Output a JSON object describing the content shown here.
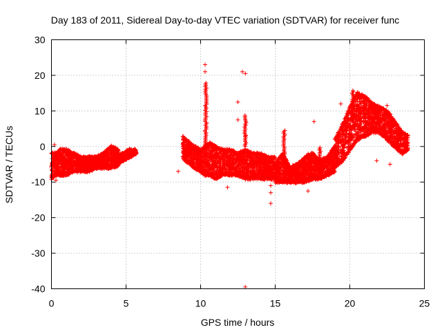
{
  "chart_data": {
    "type": "scatter",
    "title": "Day 183 of 2011, Sidereal Day-to-day VTEC variation (SDTVAR) for receiver func",
    "xlabel": "GPS time / hours",
    "ylabel": "SDTVAR / TECUs",
    "xlim": [
      0,
      25
    ],
    "ylim": [
      -40,
      30
    ],
    "x_ticks": [
      0,
      5,
      10,
      15,
      20,
      25
    ],
    "y_ticks": [
      -40,
      -30,
      -20,
      -10,
      0,
      10,
      20,
      30
    ],
    "grid": true,
    "marker": "+",
    "color": "#ff0000",
    "bands": [
      {
        "x": [
          0,
          0.3,
          0.6,
          1.0,
          1.5,
          2.0,
          2.5,
          3.0,
          3.5,
          4.0,
          4.5
        ],
        "lo": [
          -9,
          -8,
          -8,
          -8,
          -7,
          -7,
          -7,
          -6,
          -6,
          -6,
          -5
        ],
        "hi": [
          -2,
          -2,
          -1,
          -1,
          -2,
          -3,
          -3,
          -3,
          -2,
          0,
          -1
        ]
      },
      {
        "x": [
          4.2,
          4.8,
          5.2,
          5.7
        ],
        "lo": [
          -6,
          -4,
          -3,
          -2
        ],
        "hi": [
          -3,
          -2,
          -1,
          -1
        ]
      },
      {
        "x": [
          8.8,
          9.0,
          9.3,
          9.6,
          10.0,
          10.3,
          10.6,
          11.0,
          11.5,
          12.0,
          12.5,
          13.0,
          13.5,
          14.0,
          14.5,
          15.0
        ],
        "lo": [
          -3,
          -4,
          -5,
          -6,
          -7,
          -8,
          -8,
          -9,
          -8,
          -8,
          -8,
          -9,
          -9,
          -9,
          -9,
          -9
        ],
        "hi": [
          3,
          2,
          1,
          0,
          -1,
          0,
          1,
          0,
          -1,
          -1,
          -2,
          -1,
          -2,
          -2,
          -3,
          -3
        ]
      },
      {
        "x": [
          15.0,
          15.5,
          16.0,
          16.5,
          17.0,
          17.5,
          18.0,
          18.5,
          19.0
        ],
        "lo": [
          -10,
          -10,
          -10,
          -10,
          -10,
          -9,
          -9,
          -8,
          -7
        ],
        "hi": [
          -5,
          -2,
          -6,
          -5,
          -3,
          -2,
          -4,
          -3,
          0
        ]
      },
      {
        "x": [
          19.0,
          19.5,
          20.0,
          20.5,
          21.0,
          21.5,
          22.0,
          22.5,
          23.0,
          23.5,
          23.9
        ],
        "lo": [
          -6,
          -4,
          -1,
          2,
          3,
          4,
          4,
          2,
          0,
          -2,
          -1
        ],
        "hi": [
          2,
          6,
          11,
          15,
          14,
          12,
          11,
          10,
          7,
          4,
          3
        ]
      }
    ],
    "spikes": [
      {
        "x": 10.35,
        "y_from": 0,
        "y_to": 18
      },
      {
        "x": 13.0,
        "y_from": 0,
        "y_to": 9
      },
      {
        "x": 15.6,
        "y_from": -6,
        "y_to": 4.5
      },
      {
        "x": 17.2,
        "y_from": -8,
        "y_to": -2
      },
      {
        "x": 18.0,
        "y_from": -8,
        "y_to": 0
      },
      {
        "x": 20.2,
        "y_from": 8,
        "y_to": 16
      }
    ],
    "outliers": [
      {
        "x": 10.3,
        "y": 23
      },
      {
        "x": 10.3,
        "y": 21
      },
      {
        "x": 12.8,
        "y": 21
      },
      {
        "x": 13.0,
        "y": 20.5
      },
      {
        "x": 12.5,
        "y": 12.5
      },
      {
        "x": 12.5,
        "y": 7.5
      },
      {
        "x": 13.0,
        "y": 3
      },
      {
        "x": 11.8,
        "y": -11.5
      },
      {
        "x": 14.7,
        "y": -11
      },
      {
        "x": 14.7,
        "y": -13
      },
      {
        "x": 14.7,
        "y": -16
      },
      {
        "x": 13.0,
        "y": -39.5
      },
      {
        "x": 17.2,
        "y": -12.5
      },
      {
        "x": 17.6,
        "y": 7
      },
      {
        "x": 21.8,
        "y": -4
      },
      {
        "x": 22.7,
        "y": -5
      },
      {
        "x": 8.5,
        "y": -7
      },
      {
        "x": 0.2,
        "y": 0.5
      },
      {
        "x": 0.3,
        "y": -9.5
      },
      {
        "x": 22.5,
        "y": 11.5
      },
      {
        "x": 22.1,
        "y": 10.5
      },
      {
        "x": 20.7,
        "y": 12.5
      },
      {
        "x": 19.4,
        "y": 12
      }
    ]
  }
}
